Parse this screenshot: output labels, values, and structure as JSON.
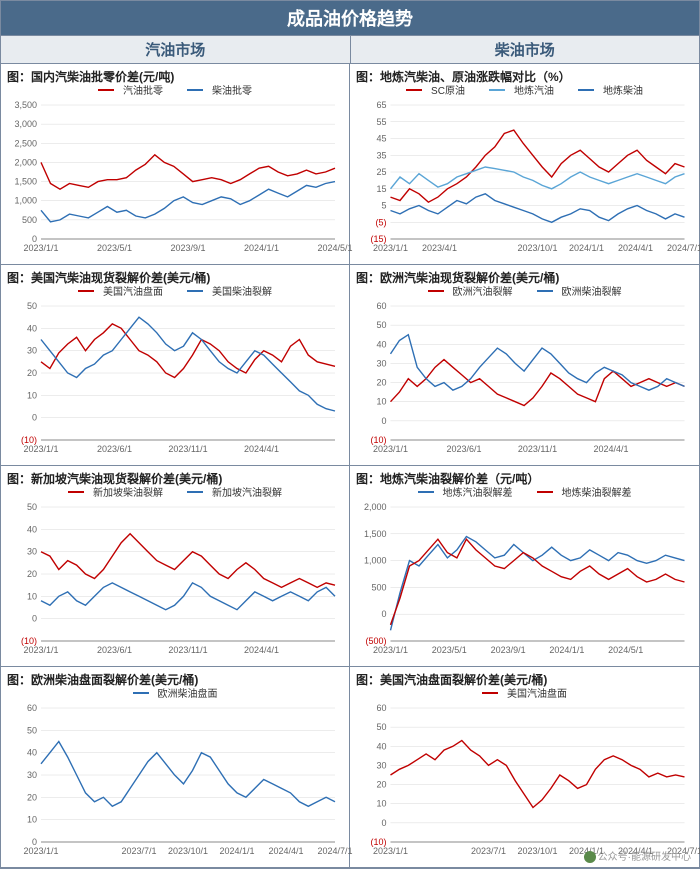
{
  "title": "成品油价格趋势",
  "section_left": "汽油市场",
  "section_right": "柴油市场",
  "watermark": "公众号·能源研发中心",
  "colors": {
    "red": "#c00000",
    "blue": "#2e6fb4",
    "cyan": "#5aa5d6",
    "grid": "#d8d8d8",
    "axis": "#888888",
    "neg": "#c00000"
  },
  "charts": [
    {
      "title": "图：国内汽柴油批零价差(元/吨)",
      "ylim": [
        0,
        3500
      ],
      "ytick_step": 500,
      "neg_label": null,
      "xlabels": [
        "2023/1/1",
        "2023/5/1",
        "2023/9/1",
        "2024/1/1",
        "2024/5/1"
      ],
      "series": [
        {
          "name": "汽油批零",
          "color": "#c00000",
          "values": [
            2000,
            1450,
            1300,
            1450,
            1400,
            1350,
            1500,
            1550,
            1550,
            1600,
            1800,
            1950,
            2200,
            2000,
            1900,
            1700,
            1500,
            1550,
            1600,
            1550,
            1450,
            1550,
            1700,
            1850,
            1900,
            1750,
            1650,
            1700,
            1800,
            1700,
            1750,
            1850
          ]
        },
        {
          "name": "柴油批零",
          "color": "#2e6fb4",
          "values": [
            750,
            450,
            500,
            650,
            600,
            550,
            700,
            850,
            700,
            750,
            600,
            550,
            650,
            800,
            1000,
            1100,
            950,
            900,
            1000,
            1100,
            1050,
            900,
            1000,
            1150,
            1300,
            1200,
            1100,
            1250,
            1400,
            1350,
            1450,
            1500
          ]
        }
      ]
    },
    {
      "title": "图：地炼汽柴油、原油涨跌幅对比（%）",
      "ylim": [
        -15,
        65
      ],
      "ytick_step": 10,
      "neg_label": null,
      "xlabels": [
        "2023/1/1",
        "2023/4/1",
        "",
        "2023/10/1",
        "2024/1/1",
        "2024/4/1",
        "2024/7/1"
      ],
      "series": [
        {
          "name": "SC原油",
          "color": "#c00000",
          "values": [
            10,
            8,
            15,
            12,
            7,
            10,
            15,
            18,
            22,
            28,
            35,
            40,
            48,
            50,
            42,
            35,
            28,
            22,
            30,
            35,
            38,
            33,
            28,
            25,
            30,
            35,
            38,
            32,
            28,
            24,
            30,
            28
          ]
        },
        {
          "name": "地炼汽油",
          "color": "#5aa5d6",
          "values": [
            15,
            22,
            18,
            24,
            20,
            16,
            18,
            22,
            24,
            26,
            28,
            27,
            26,
            25,
            22,
            20,
            17,
            15,
            18,
            22,
            25,
            22,
            20,
            18,
            20,
            22,
            24,
            22,
            20,
            18,
            22,
            24
          ]
        },
        {
          "name": "地炼柴油",
          "color": "#2e6fb4",
          "values": [
            2,
            0,
            3,
            5,
            2,
            0,
            4,
            8,
            6,
            10,
            12,
            8,
            6,
            4,
            2,
            0,
            -3,
            -5,
            -2,
            0,
            3,
            2,
            -2,
            -4,
            0,
            3,
            5,
            2,
            0,
            -3,
            0,
            -2
          ]
        }
      ]
    },
    {
      "title": "图：美国汽柴油现货裂解价差(美元/桶)",
      "ylim": [
        -10,
        50
      ],
      "ytick_step": 10,
      "neg_label": "(10)",
      "xlabels": [
        "2023/1/1",
        "2023/6/1",
        "2023/11/1",
        "2024/4/1",
        ""
      ],
      "series": [
        {
          "name": "美国汽油盘面",
          "color": "#c00000",
          "values": [
            25,
            22,
            29,
            33,
            36,
            30,
            35,
            38,
            42,
            40,
            35,
            30,
            28,
            25,
            20,
            18,
            22,
            28,
            35,
            33,
            30,
            25,
            22,
            20,
            26,
            30,
            28,
            25,
            32,
            35,
            28,
            25,
            24,
            23
          ]
        },
        {
          "name": "美国柴油裂解",
          "color": "#2e6fb4",
          "values": [
            35,
            30,
            25,
            20,
            18,
            22,
            24,
            28,
            30,
            35,
            40,
            45,
            42,
            38,
            33,
            30,
            32,
            38,
            35,
            30,
            25,
            22,
            20,
            25,
            30,
            28,
            24,
            20,
            16,
            12,
            10,
            6,
            4,
            3
          ]
        }
      ]
    },
    {
      "title": "图：欧洲汽柴油现货裂解价差(美元/桶)",
      "ylim": [
        -10,
        60
      ],
      "ytick_step": 10,
      "neg_label": "(10)",
      "xlabels": [
        "2023/1/1",
        "2023/6/1",
        "2023/11/1",
        "2024/4/1",
        ""
      ],
      "series": [
        {
          "name": "欧洲汽油裂解",
          "color": "#c00000",
          "values": [
            10,
            15,
            22,
            18,
            22,
            28,
            32,
            28,
            24,
            20,
            22,
            18,
            14,
            12,
            10,
            8,
            12,
            18,
            25,
            22,
            18,
            14,
            12,
            10,
            22,
            26,
            22,
            18,
            20,
            22,
            20,
            18,
            20,
            18
          ]
        },
        {
          "name": "欧洲柴油裂解",
          "color": "#2e6fb4",
          "values": [
            35,
            42,
            45,
            28,
            22,
            18,
            20,
            16,
            18,
            22,
            28,
            33,
            38,
            35,
            30,
            26,
            32,
            38,
            35,
            30,
            25,
            22,
            20,
            25,
            28,
            26,
            24,
            20,
            18,
            16,
            18,
            22,
            20,
            18
          ]
        }
      ]
    },
    {
      "title": "图：新加坡汽柴油现货裂解价差(美元/桶)",
      "ylim": [
        -10,
        50
      ],
      "ytick_step": 10,
      "neg_label": "(10)",
      "xlabels": [
        "2023/1/1",
        "2023/6/1",
        "2023/11/1",
        "2024/4/1",
        ""
      ],
      "series": [
        {
          "name": "新加坡柴油裂解",
          "color": "#c00000",
          "values": [
            30,
            28,
            22,
            26,
            24,
            20,
            18,
            22,
            28,
            34,
            38,
            34,
            30,
            26,
            24,
            22,
            26,
            30,
            28,
            24,
            20,
            18,
            22,
            25,
            22,
            18,
            16,
            14,
            16,
            18,
            16,
            14,
            16,
            15
          ]
        },
        {
          "name": "新加坡汽油裂解",
          "color": "#2e6fb4",
          "values": [
            8,
            6,
            10,
            12,
            8,
            6,
            10,
            14,
            16,
            14,
            12,
            10,
            8,
            6,
            4,
            6,
            10,
            16,
            14,
            10,
            8,
            6,
            4,
            8,
            12,
            10,
            8,
            10,
            12,
            10,
            8,
            12,
            14,
            10
          ]
        }
      ]
    },
    {
      "title": "图：地炼汽柴油裂解价差（元/吨）",
      "ylim": [
        -500,
        2000
      ],
      "ytick_step": 500,
      "neg_label": "(500)",
      "xlabels": [
        "2023/1/1",
        "2023/5/1",
        "2023/9/1",
        "2024/1/1",
        "2024/5/1",
        ""
      ],
      "series": [
        {
          "name": "地炼汽油裂解差",
          "color": "#2e6fb4",
          "values": [
            -300,
            400,
            1000,
            900,
            1100,
            1300,
            1050,
            1200,
            1450,
            1350,
            1200,
            1050,
            1100,
            1300,
            1150,
            1000,
            1100,
            1250,
            1100,
            1000,
            1050,
            1200,
            1100,
            1000,
            1150,
            1100,
            1000,
            950,
            1000,
            1100,
            1050,
            1000
          ]
        },
        {
          "name": "地炼柴油裂解差",
          "color": "#c00000",
          "values": [
            -200,
            300,
            900,
            1000,
            1200,
            1400,
            1150,
            1050,
            1400,
            1200,
            1050,
            900,
            850,
            1000,
            1150,
            1050,
            900,
            800,
            700,
            650,
            800,
            900,
            750,
            650,
            750,
            850,
            700,
            600,
            650,
            750,
            650,
            600
          ]
        }
      ]
    },
    {
      "title": "图：欧洲柴油盘面裂解价差(美元/桶)",
      "ylim": [
        0,
        60
      ],
      "ytick_step": 10,
      "neg_label": null,
      "xlabels": [
        "2023/1/1",
        "",
        "2023/7/1",
        "2023/10/1",
        "2024/1/1",
        "2024/4/1",
        "2024/7/1"
      ],
      "series": [
        {
          "name": "欧洲柴油盘面",
          "color": "#2e6fb4",
          "values": [
            35,
            40,
            45,
            38,
            30,
            22,
            18,
            20,
            16,
            18,
            24,
            30,
            36,
            40,
            35,
            30,
            26,
            32,
            40,
            38,
            32,
            26,
            22,
            20,
            24,
            28,
            26,
            24,
            22,
            18,
            16,
            18,
            20,
            18
          ]
        }
      ]
    },
    {
      "title": "图：美国汽油盘面裂解价差(美元/桶)",
      "ylim": [
        -10,
        60
      ],
      "ytick_step": 10,
      "neg_label": "(10)",
      "xlabels": [
        "2023/1/1",
        "",
        "2023/7/1",
        "2023/10/1",
        "2024/1/1",
        "2024/4/1",
        "2024/7/1"
      ],
      "series": [
        {
          "name": "美国汽油盘面",
          "color": "#c00000",
          "values": [
            25,
            28,
            30,
            33,
            36,
            33,
            38,
            40,
            43,
            38,
            35,
            30,
            33,
            30,
            22,
            15,
            8,
            12,
            18,
            25,
            22,
            18,
            20,
            28,
            33,
            35,
            33,
            30,
            28,
            24,
            26,
            24,
            25,
            24
          ]
        }
      ]
    }
  ]
}
